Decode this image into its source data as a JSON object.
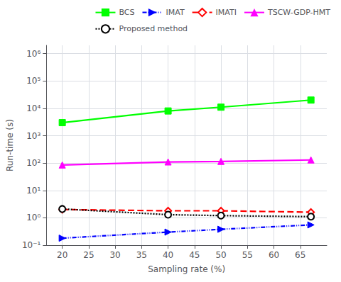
{
  "chart_data": {
    "type": "line",
    "x": [
      20,
      40,
      50,
      67
    ],
    "series": [
      {
        "name": "BCS",
        "color": "#00ff00",
        "values": [
          3000,
          8000,
          11000,
          20000
        ],
        "marker": "square",
        "line_style": "solid"
      },
      {
        "name": "IMAT",
        "color": "#0000ff",
        "values": [
          0.18,
          0.3,
          0.38,
          0.55
        ],
        "marker": "triangle-right",
        "line_style": "dashdotdot"
      },
      {
        "name": "IMATI",
        "color": "#ff0000",
        "values": [
          2.0,
          1.8,
          1.8,
          1.6
        ],
        "marker": "diamond-open",
        "line_style": "dashed"
      },
      {
        "name": "TSCW-GDP-HMT",
        "color": "#ff00ff",
        "values": [
          85,
          110,
          115,
          130
        ],
        "marker": "triangle",
        "line_style": "solid"
      },
      {
        "name": "Proposed method",
        "color": "#000000",
        "values": [
          2.1,
          1.3,
          1.2,
          1.1
        ],
        "marker": "circle-open",
        "line_style": "dotted"
      }
    ],
    "xlabel": "Sampling rate (%)",
    "ylabel": "Run-time (s)",
    "xlim": [
      17,
      70
    ],
    "xticks": [
      20,
      25,
      30,
      35,
      40,
      45,
      50,
      55,
      60,
      65
    ],
    "ylim": [
      0.1,
      2000000
    ],
    "yticks": [
      {
        "value": 0.1,
        "label": "10⁻¹"
      },
      {
        "value": 1,
        "label": "10⁰"
      },
      {
        "value": 10,
        "label": "10¹"
      },
      {
        "value": 100,
        "label": "10²"
      },
      {
        "value": 1000,
        "label": "10³"
      },
      {
        "value": 10000,
        "label": "10⁴"
      },
      {
        "value": 100000,
        "label": "10⁵"
      },
      {
        "value": 1000000,
        "label": "10⁶"
      }
    ],
    "log": "y",
    "grid": true,
    "legend": "upper right"
  }
}
